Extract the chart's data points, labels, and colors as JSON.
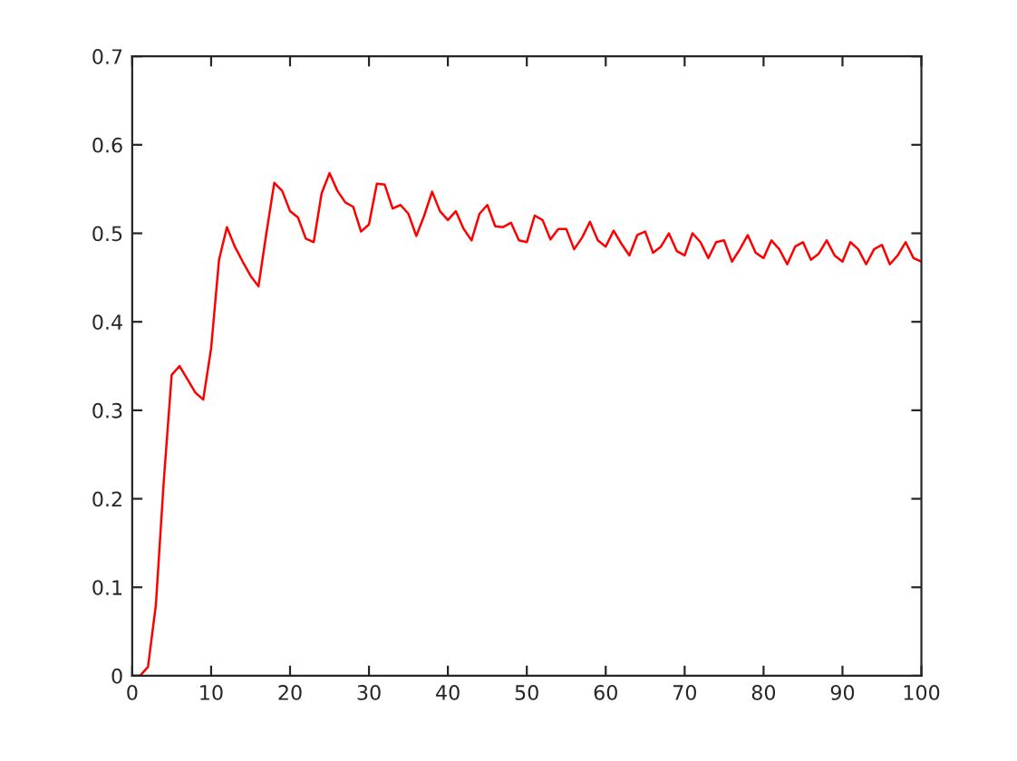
{
  "chart_data": {
    "type": "line",
    "color": "#ff0000",
    "x": [
      0,
      1,
      2,
      3,
      4,
      5,
      6,
      7,
      8,
      9,
      10,
      11,
      12,
      13,
      14,
      15,
      16,
      17,
      18,
      19,
      20,
      21,
      22,
      23,
      24,
      25,
      26,
      27,
      28,
      29,
      30,
      31,
      32,
      33,
      34,
      35,
      36,
      37,
      38,
      39,
      40,
      41,
      42,
      43,
      44,
      45,
      46,
      47,
      48,
      49,
      50,
      51,
      52,
      53,
      54,
      55,
      56,
      57,
      58,
      59,
      60,
      61,
      62,
      63,
      64,
      65,
      66,
      67,
      68,
      69,
      70,
      71,
      72,
      73,
      74,
      75,
      76,
      77,
      78,
      79,
      80,
      81,
      82,
      83,
      84,
      85,
      86,
      87,
      88,
      89,
      90,
      91,
      92,
      93,
      94,
      95,
      96,
      97,
      98,
      99,
      100
    ],
    "values": [
      0,
      0,
      0.01,
      0.08,
      0.22,
      0.34,
      0.35,
      0.335,
      0.32,
      0.312,
      0.37,
      0.47,
      0.507,
      0.485,
      0.468,
      0.452,
      0.44,
      0.5,
      0.557,
      0.548,
      0.525,
      0.518,
      0.494,
      0.49,
      0.545,
      0.568,
      0.548,
      0.535,
      0.53,
      0.502,
      0.51,
      0.556,
      0.555,
      0.528,
      0.532,
      0.522,
      0.497,
      0.52,
      0.547,
      0.525,
      0.515,
      0.525,
      0.505,
      0.492,
      0.522,
      0.532,
      0.508,
      0.507,
      0.512,
      0.492,
      0.49,
      0.52,
      0.515,
      0.493,
      0.505,
      0.505,
      0.482,
      0.495,
      0.513,
      0.492,
      0.485,
      0.503,
      0.488,
      0.475,
      0.498,
      0.502,
      0.478,
      0.485,
      0.5,
      0.48,
      0.475,
      0.5,
      0.49,
      0.472,
      0.49,
      0.492,
      0.468,
      0.482,
      0.498,
      0.478,
      0.472,
      0.492,
      0.482,
      0.465,
      0.485,
      0.49,
      0.47,
      0.477,
      0.492,
      0.475,
      0.468,
      0.49,
      0.482,
      0.465,
      0.482,
      0.487,
      0.465,
      0.475,
      0.49,
      0.472,
      0.468
    ],
    "xlim": [
      0,
      100
    ],
    "xticks": [
      0,
      10,
      20,
      30,
      40,
      50,
      60,
      70,
      80,
      90,
      100
    ],
    "ylim": [
      0,
      0.7
    ],
    "yticks": [
      {
        "value": 0,
        "label": "0"
      },
      {
        "value": 0.1,
        "label": "0.1"
      },
      {
        "value": 0.2,
        "label": "0.2"
      },
      {
        "value": 0.3,
        "label": "0.3"
      },
      {
        "value": 0.4,
        "label": "0.4"
      },
      {
        "value": 0.5,
        "label": "0.5"
      },
      {
        "value": 0.6,
        "label": "0.6"
      },
      {
        "value": 0.7,
        "label": "0.7"
      }
    ],
    "grid": false,
    "marker": "none",
    "line_style": "solid"
  }
}
